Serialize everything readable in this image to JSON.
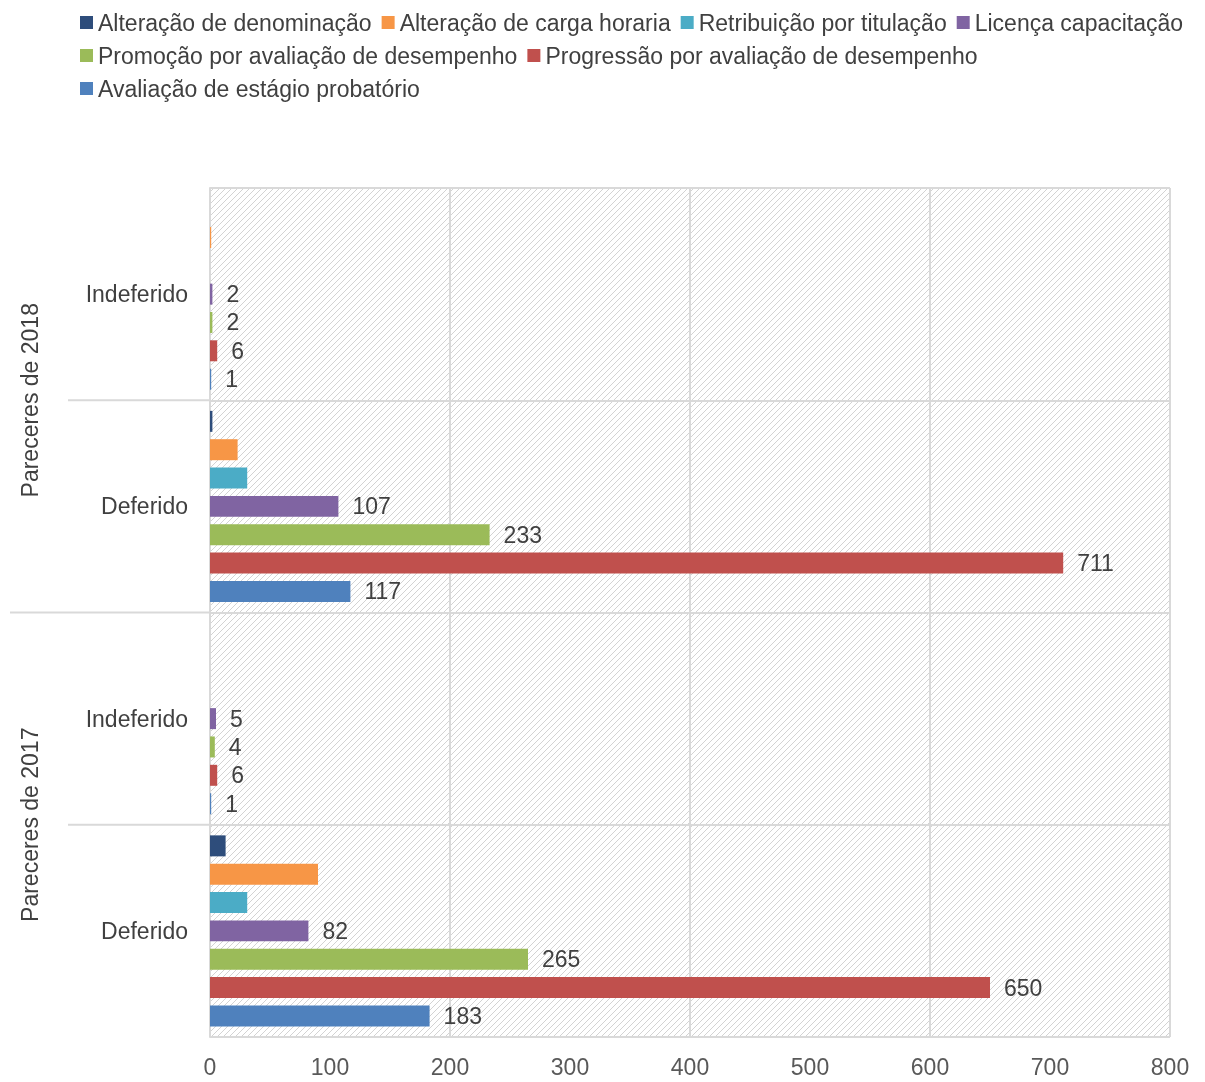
{
  "chart_data": {
    "type": "bar",
    "orientation": "horizontal",
    "categories": [
      "Indeferido",
      "Deferido",
      "Indeferido",
      "Deferido"
    ],
    "annotations": [
      "Pareceres de 2018",
      "Pareceres de 2017"
    ],
    "series": [
      {
        "name": "Alteração de denominação",
        "color": "#2e4d7b",
        "values": [
          null,
          2,
          null,
          13
        ],
        "value_labels": [
          null,
          null,
          null,
          null
        ]
      },
      {
        "name": "Alteração de carga horaria",
        "color": "#f79646",
        "values": [
          1,
          23,
          null,
          90
        ],
        "value_labels": [
          null,
          null,
          null,
          null
        ]
      },
      {
        "name": "Retribuição por titulação",
        "color": "#4bacc6",
        "values": [
          null,
          31,
          null,
          31
        ],
        "value_labels": [
          null,
          null,
          null,
          null
        ]
      },
      {
        "name": "Licença capacitação",
        "color": "#8064a2",
        "values": [
          2,
          107,
          5,
          82
        ],
        "value_labels": [
          "2",
          "107",
          "5",
          "82"
        ]
      },
      {
        "name": "Promoção por avaliação de desempenho",
        "color": "#9bbb59",
        "values": [
          2,
          233,
          4,
          265
        ],
        "value_labels": [
          "2",
          "233",
          "4",
          "265"
        ]
      },
      {
        "name": "Progressão por avaliação de desempenho",
        "color": "#c0504d",
        "values": [
          6,
          711,
          6,
          650
        ],
        "value_labels": [
          "6",
          "711",
          "6",
          "650"
        ]
      },
      {
        "name": "Avaliação de estágio probatório",
        "color": "#4f81bd",
        "values": [
          1,
          117,
          1,
          183
        ],
        "value_labels": [
          "1",
          "117",
          "1",
          "183"
        ]
      }
    ],
    "xlim": [
      0,
      800
    ],
    "xticks": [
      0,
      100,
      200,
      300,
      400,
      500,
      600,
      700,
      800
    ],
    "grid": true,
    "legend": "top"
  }
}
